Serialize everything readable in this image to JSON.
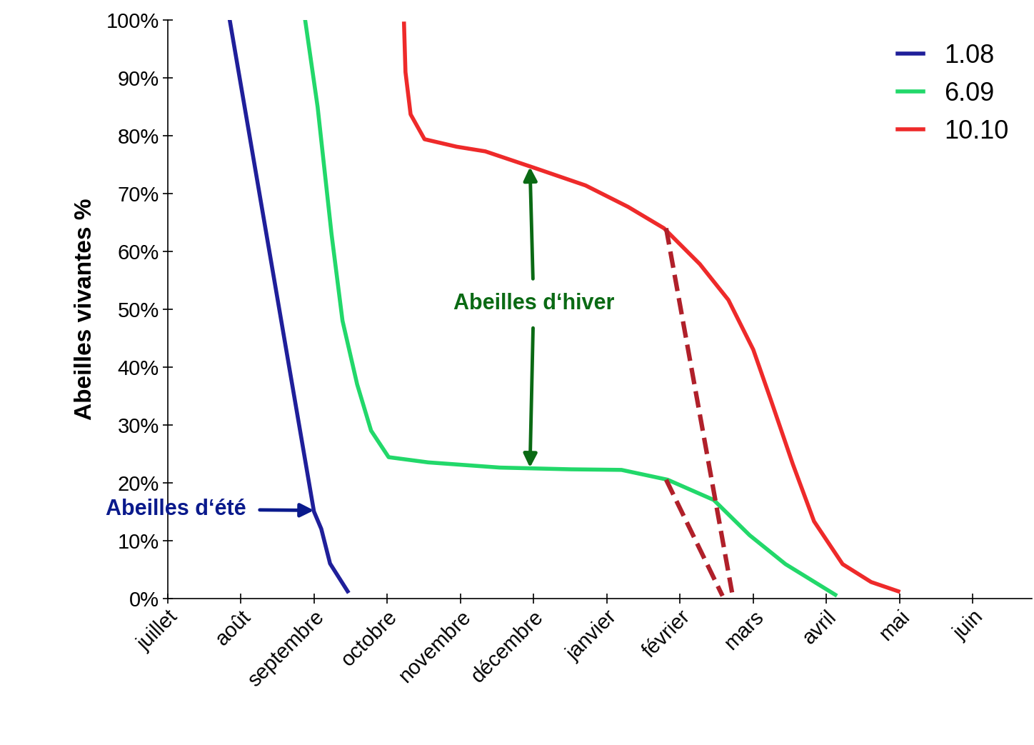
{
  "chart_data": {
    "type": "line",
    "y_label": "Abeilles vivantes %",
    "xlim": [
      0,
      11.8
    ],
    "xticks": [
      {
        "value": 0,
        "label": "juillet"
      },
      {
        "value": 1,
        "label": "août"
      },
      {
        "value": 2,
        "label": "septembre"
      },
      {
        "value": 3,
        "label": "octobre"
      },
      {
        "value": 4,
        "label": "novembre"
      },
      {
        "value": 5,
        "label": "décembre"
      },
      {
        "value": 6,
        "label": "janvier"
      },
      {
        "value": 7,
        "label": "février"
      },
      {
        "value": 8,
        "label": "mars"
      },
      {
        "value": 9,
        "label": "avril"
      },
      {
        "value": 10,
        "label": "mai"
      },
      {
        "value": 11,
        "label": "juin"
      }
    ],
    "ylim": [
      0,
      100
    ],
    "yticks": [
      {
        "value": 0,
        "label": "0%"
      },
      {
        "value": 10,
        "label": "10%"
      },
      {
        "value": 20,
        "label": "20%"
      },
      {
        "value": 30,
        "label": "30%"
      },
      {
        "value": 40,
        "label": "40%"
      },
      {
        "value": 50,
        "label": "50%"
      },
      {
        "value": 60,
        "label": "60%"
      },
      {
        "value": 70,
        "label": "70%"
      },
      {
        "value": 80,
        "label": "80%"
      },
      {
        "value": 90,
        "label": "90%"
      },
      {
        "value": 100,
        "label": "100%"
      }
    ],
    "grid": false,
    "legend": "upper right",
    "series": [
      {
        "name": "1.08",
        "color": "#1f1f9a",
        "line_style": "solid",
        "x": [
          0.85,
          2.0,
          2.1,
          2.22,
          2.46
        ],
        "values": [
          100,
          15,
          12,
          6,
          1.2
        ]
      },
      {
        "name": "6.09",
        "color": "#22d86a",
        "line_style": "solid",
        "x": [
          1.88,
          2.05,
          2.24,
          2.39,
          2.59,
          2.78,
          3.02,
          3.56,
          4.54,
          5.51,
          6.2,
          6.83,
          7.46,
          7.95,
          8.44,
          9.12
        ],
        "values": [
          100,
          85,
          63,
          48,
          37,
          29,
          24.4,
          23.5,
          22.6,
          22.3,
          22.2,
          20.5,
          17,
          10.9,
          5.9,
          0.6
        ]
      },
      {
        "name": "10.10",
        "color": "#ee2a2a",
        "line_style": "solid",
        "x": [
          3.23,
          3.25,
          3.32,
          3.51,
          3.95,
          4.34,
          5.02,
          5.71,
          6.29,
          6.78,
          7.27,
          7.66,
          8.0,
          8.24,
          8.54,
          8.83,
          9.22,
          9.61,
          9.98
        ],
        "values": [
          99.4,
          91,
          83.7,
          79.4,
          78.1,
          77.3,
          74.4,
          71.4,
          67.7,
          64,
          57.8,
          51.6,
          43,
          34.3,
          23.2,
          13.3,
          5.9,
          2.8,
          1.2
        ]
      },
      {
        "color": "#b0202a",
        "line_style": "dashed",
        "x": [
          6.81,
          7.71
        ],
        "values": [
          64,
          1
        ]
      },
      {
        "color": "#b0202a",
        "line_style": "dashed",
        "x": [
          6.81,
          7.58
        ],
        "values": [
          20.5,
          0.4
        ]
      }
    ],
    "annotations": [
      {
        "text": "Abeilles d‘hiver",
        "x": 5.0,
        "y": 51,
        "color": "#0a6a14",
        "arrows": [
          {
            "x": 4.95,
            "y": 74.6
          },
          {
            "x": 4.95,
            "y": 22.6
          }
        ]
      },
      {
        "text": "Abeilles d‘été",
        "x": 1.07,
        "y": 15.4,
        "color": "#0a1a8c",
        "arrows": [
          {
            "x": 2.0,
            "y": 15.2
          }
        ]
      }
    ]
  }
}
